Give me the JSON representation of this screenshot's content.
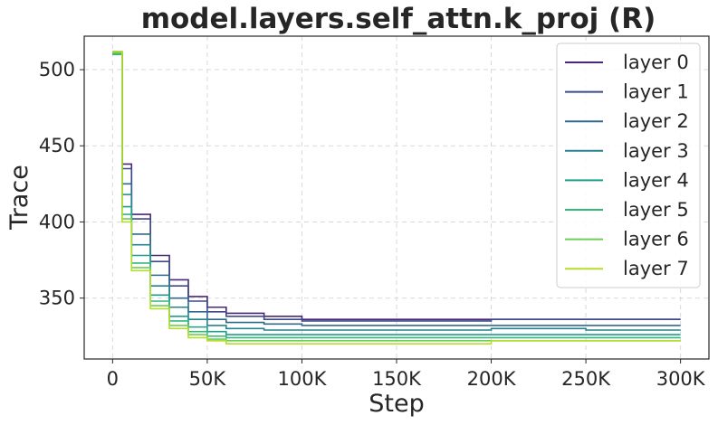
{
  "chart_data": {
    "type": "line",
    "title": "model.layers.self_attn.k_proj (R)",
    "xlabel": "Step",
    "ylabel": "Trace",
    "xlim": [
      -15000,
      315000
    ],
    "ylim": [
      310,
      522
    ],
    "xticks": [
      0,
      50000,
      100000,
      150000,
      200000,
      250000,
      300000
    ],
    "xtick_labels": [
      "0",
      "50K",
      "100K",
      "150K",
      "200K",
      "250K",
      "300K"
    ],
    "yticks": [
      350,
      400,
      450,
      500
    ],
    "ytick_labels": [
      "350",
      "400",
      "450",
      "500"
    ],
    "grid": true,
    "legend_position": "top-right",
    "x": [
      0,
      5000,
      10000,
      20000,
      30000,
      40000,
      50000,
      60000,
      80000,
      100000,
      150000,
      200000,
      250000,
      300000
    ],
    "series": [
      {
        "name": "layer 0",
        "color": "#482878",
        "values": [
          512,
          438,
          405,
          378,
          362,
          351,
          344,
          340,
          338,
          336,
          336,
          336,
          336,
          336
        ]
      },
      {
        "name": "layer 1",
        "color": "#3e4989",
        "values": [
          511,
          435,
          402,
          374,
          358,
          348,
          341,
          338,
          336,
          335,
          335,
          336,
          336,
          336
        ]
      },
      {
        "name": "layer 2",
        "color": "#31688e",
        "values": [
          510,
          425,
          392,
          365,
          350,
          341,
          336,
          334,
          333,
          332,
          332,
          332,
          332,
          332
        ]
      },
      {
        "name": "layer 3",
        "color": "#26828e",
        "values": [
          510,
          418,
          385,
          358,
          344,
          336,
          332,
          330,
          329,
          329,
          329,
          330,
          329,
          329
        ]
      },
      {
        "name": "layer 4",
        "color": "#1f9e89",
        "values": [
          510,
          410,
          378,
          352,
          338,
          331,
          328,
          326,
          326,
          326,
          326,
          326,
          326,
          326
        ]
      },
      {
        "name": "layer 5",
        "color": "#35b779",
        "values": [
          510,
          405,
          373,
          348,
          335,
          328,
          325,
          324,
          324,
          324,
          324,
          324,
          324,
          324
        ]
      },
      {
        "name": "layer 6",
        "color": "#6ece58",
        "values": [
          511,
          402,
          370,
          345,
          332,
          326,
          323,
          322,
          322,
          322,
          322,
          322,
          322,
          322
        ]
      },
      {
        "name": "layer 7",
        "color": "#b5de2b",
        "values": [
          512,
          400,
          368,
          343,
          330,
          324,
          322,
          320,
          320,
          320,
          320,
          322,
          322,
          322
        ]
      }
    ]
  }
}
